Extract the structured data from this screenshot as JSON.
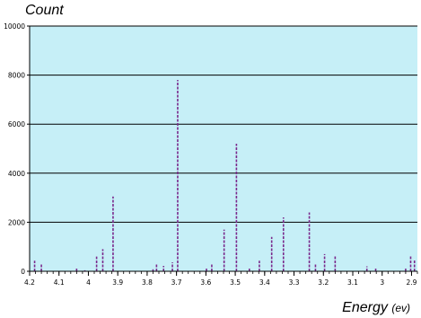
{
  "chart_data": {
    "type": "bar",
    "ylabel": "Count",
    "xlabel": "Energy",
    "xlabel_unit": "(ev)",
    "xlim": [
      4.2,
      2.88
    ],
    "x_reversed": true,
    "ylim": [
      0,
      10000
    ],
    "xticks": [
      "4.2",
      "4.1",
      "4",
      "3.9",
      "3.8",
      "3.7",
      "3.6",
      "3.5",
      "3.4",
      "3.3",
      "3.2",
      "3.1",
      "3",
      "2.9"
    ],
    "xtick_values": [
      4.2,
      4.1,
      4.0,
      3.9,
      3.8,
      3.7,
      3.6,
      3.5,
      3.4,
      3.3,
      3.2,
      3.1,
      3.0,
      2.9
    ],
    "yticks": [
      "0",
      "2000",
      "4000",
      "6000",
      "8000",
      "10000"
    ],
    "ytick_values": [
      0,
      2000,
      4000,
      6000,
      8000,
      10000
    ],
    "grid": "horizontal",
    "plot_background": "#c6eff7",
    "bar_color": "#7a2a8c",
    "peaks": [
      {
        "x": 4.183,
        "y": 430
      },
      {
        "x": 4.16,
        "y": 300
      },
      {
        "x": 4.04,
        "y": 110
      },
      {
        "x": 4.012,
        "y": 40
      },
      {
        "x": 3.972,
        "y": 600
      },
      {
        "x": 3.951,
        "y": 900
      },
      {
        "x": 3.916,
        "y": 3050
      },
      {
        "x": 3.78,
        "y": 80
      },
      {
        "x": 3.768,
        "y": 330
      },
      {
        "x": 3.744,
        "y": 220
      },
      {
        "x": 3.714,
        "y": 360
      },
      {
        "x": 3.696,
        "y": 7800
      },
      {
        "x": 3.598,
        "y": 140
      },
      {
        "x": 3.58,
        "y": 280
      },
      {
        "x": 3.538,
        "y": 1700
      },
      {
        "x": 3.496,
        "y": 5200
      },
      {
        "x": 3.452,
        "y": 110
      },
      {
        "x": 3.418,
        "y": 430
      },
      {
        "x": 3.376,
        "y": 1400
      },
      {
        "x": 3.336,
        "y": 2200
      },
      {
        "x": 3.248,
        "y": 2400
      },
      {
        "x": 3.227,
        "y": 280
      },
      {
        "x": 3.196,
        "y": 700
      },
      {
        "x": 3.16,
        "y": 650
      },
      {
        "x": 3.052,
        "y": 200
      },
      {
        "x": 3.022,
        "y": 150
      },
      {
        "x": 2.92,
        "y": 120
      },
      {
        "x": 2.903,
        "y": 620
      },
      {
        "x": 2.89,
        "y": 450
      }
    ]
  }
}
